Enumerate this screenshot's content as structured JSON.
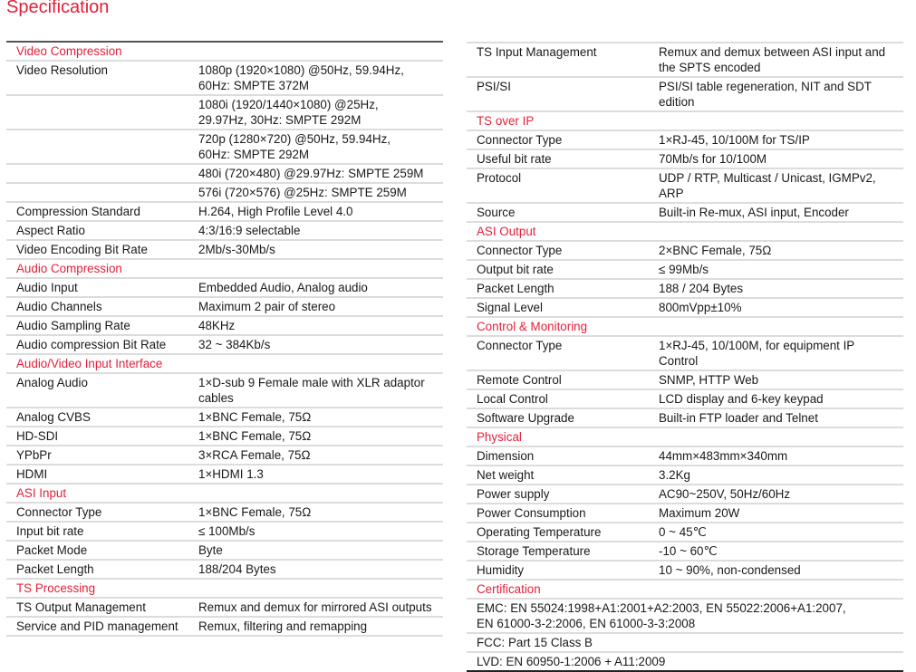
{
  "title": "Specification",
  "accent_color": "#e3203a",
  "left": [
    {
      "section": "Video Compression"
    },
    {
      "label": "Video Resolution",
      "value": "1080p (1920×1080) @50Hz, 59.94Hz,\n60Hz: SMPTE  372M"
    },
    {
      "label": "",
      "value": "1080i (1920/1440×1080) @25Hz,\n29.97Hz, 30Hz: SMPTE 292M"
    },
    {
      "label": "",
      "value": "720p (1280×720) @50Hz, 59.94Hz,\n60Hz: SMPTE 292M"
    },
    {
      "label": "",
      "value": "480i (720×480) @29.97Hz: SMPTE 259M"
    },
    {
      "label": "",
      "value": "576i (720×576) @25Hz: SMPTE 259M"
    },
    {
      "label": "Compression Standard",
      "value": "H.264, High Profile Level 4.0"
    },
    {
      "label": "Aspect Ratio",
      "value": "4:3/16:9 selectable"
    },
    {
      "label": "Video Encoding Bit Rate",
      "value": "2Mb/s-30Mb/s"
    },
    {
      "section": "Audio Compression"
    },
    {
      "label": "Audio Input",
      "value": "Embedded Audio, Analog audio"
    },
    {
      "label": "Audio Channels",
      "value": "Maximum 2 pair of stereo"
    },
    {
      "label": "Audio Sampling Rate",
      "value": "48KHz"
    },
    {
      "label": "Audio compression Bit Rate",
      "value": "32 ~ 384Kb/s"
    },
    {
      "section": "Audio/Video Input Interface"
    },
    {
      "label": "Analog Audio",
      "value": "1×D-sub 9 Female male with XLR adaptor\ncables"
    },
    {
      "label": "Analog CVBS",
      "value": "1×BNC Female, 75Ω"
    },
    {
      "label": "HD-SDI",
      "value": "1×BNC Female, 75Ω"
    },
    {
      "label": "YPbPr",
      "value": "3×RCA Female, 75Ω"
    },
    {
      "label": "HDMI",
      "value": "1×HDMI 1.3"
    },
    {
      "section": "ASI Input"
    },
    {
      "label": "Connector Type",
      "value": "1×BNC Female, 75Ω"
    },
    {
      "label": "Input bit rate",
      "value": "≤ 100Mb/s"
    },
    {
      "label": "Packet Mode",
      "value": "Byte"
    },
    {
      "label": "Packet Length",
      "value": "188/204 Bytes"
    },
    {
      "section": "TS Processing"
    },
    {
      "label": "TS Output Management",
      "value": "Remux and demux for mirrored ASI outputs"
    },
    {
      "label": "Service and PID management",
      "value": "Remux, filtering and remapping"
    }
  ],
  "right": [
    {
      "label": "TS Input Management",
      "value": "Remux and demux between ASI input and\nthe SPTS encoded"
    },
    {
      "label": "PSI/SI",
      "value": "PSI/SI table regeneration, NIT and SDT edition"
    },
    {
      "section": "TS over IP"
    },
    {
      "label": "Connector Type",
      "value": "1×RJ-45, 10/100M for TS/IP"
    },
    {
      "label": "Useful bit rate",
      "value": "70Mb/s for 10/100M"
    },
    {
      "label": "Protocol",
      "value": "UDP / RTP, Multicast / Unicast, IGMPv2, ARP"
    },
    {
      "label": "Source",
      "value": "Built-in Re-mux, ASI input, Encoder"
    },
    {
      "section": "ASI Output"
    },
    {
      "label": "Connector Type",
      "value": "2×BNC Female, 75Ω"
    },
    {
      "label": "Output bit rate",
      "value": "≤ 99Mb/s"
    },
    {
      "label": "Packet Length",
      "value": "188 / 204 Bytes"
    },
    {
      "label": "Signal Level",
      "value": "800mVpp±10%"
    },
    {
      "section": "Control & Monitoring"
    },
    {
      "label": "Connector Type",
      "value": "1×RJ-45, 10/100M, for equipment IP\nControl"
    },
    {
      "label": "Remote Control",
      "value": "SNMP, HTTP Web"
    },
    {
      "label": "Local Control",
      "value": "LCD display and 6-key keypad"
    },
    {
      "label": "Software Upgrade",
      "value": "Built-in FTP loader and Telnet"
    },
    {
      "section": "Physical"
    },
    {
      "label": "Dimension",
      "value": "44mm×483mm×340mm"
    },
    {
      "label": "Net weight",
      "value": "3.2Kg"
    },
    {
      "label": "Power supply",
      "value": "AC90~250V, 50Hz/60Hz"
    },
    {
      "label": "Power Consumption",
      "value": "Maximum 20W"
    },
    {
      "label": "Operating Temperature",
      "value": "0 ~ 45℃"
    },
    {
      "label": "Storage Temperature",
      "value": "-10 ~ 60℃"
    },
    {
      "label": "Humidity",
      "value": "10 ~ 90%, non-condensed"
    },
    {
      "section": "Certification"
    },
    {
      "full": "EMC: EN 55024:1998+A1:2001+A2:2003, EN 55022:2006+A1:2007,\nEN 61000-3-2:2006, EN 61000-3-3:2008"
    },
    {
      "full": "FCC: Part 15 Class B"
    },
    {
      "full": "LVD: EN 60950-1:2006 + A11:2009"
    }
  ]
}
